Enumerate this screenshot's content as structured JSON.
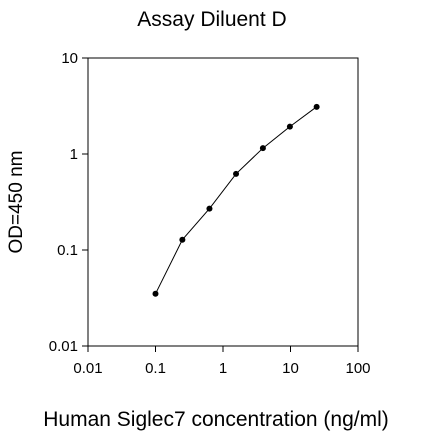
{
  "chart_data": {
    "type": "line",
    "title": "Assay Diluent D",
    "xlabel": "Human Siglec7 concentration (ng/ml)",
    "ylabel": "OD=450 nm",
    "x_scale": "log",
    "y_scale": "log",
    "xlim": [
      0.01,
      100
    ],
    "ylim": [
      0.01,
      10
    ],
    "x_ticks": [
      "0.01",
      "0.1",
      "1",
      "10",
      "100"
    ],
    "y_ticks": [
      "0.01",
      "0.1",
      "1",
      "10"
    ],
    "grid": false,
    "legend": "none",
    "series": [
      {
        "x": [
          0.1,
          0.25,
          0.63,
          1.56,
          3.9,
          9.8,
          24.4
        ],
        "y": [
          0.035,
          0.128,
          0.27,
          0.62,
          1.15,
          1.93,
          3.1
        ]
      }
    ]
  }
}
